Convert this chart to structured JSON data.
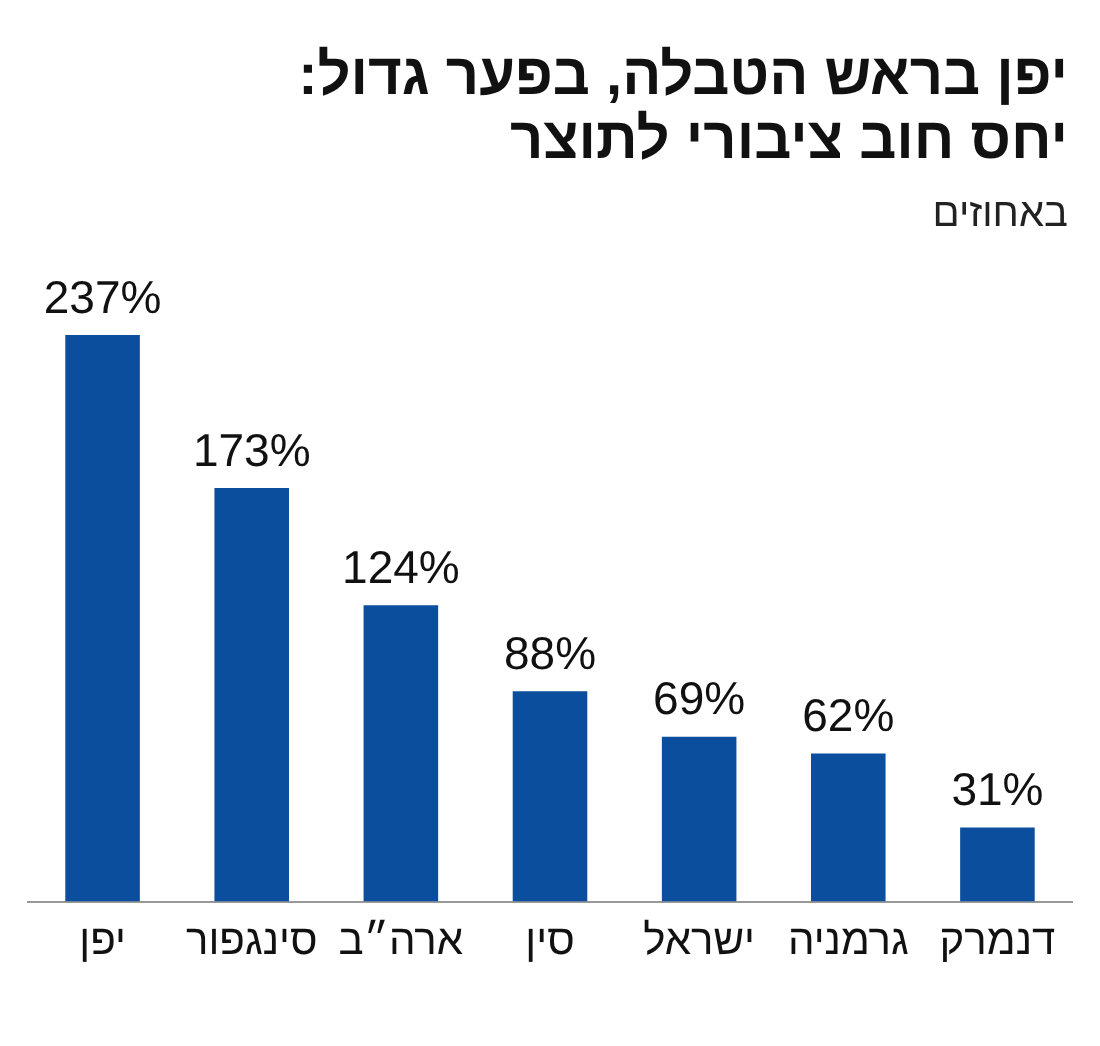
{
  "chart_data": {
    "type": "bar",
    "title": "יפן בראש הטבלה, בפער גדול: יחס חוב ציבורי לתוצר",
    "subtitle": "באחוזים",
    "categories": [
      "יפן",
      "סינגפור",
      "ארה״ב",
      "סין",
      "ישראל",
      "גרמניה",
      "דנמרק"
    ],
    "values": [
      237,
      173,
      124,
      88,
      69,
      62,
      31
    ],
    "value_labels": [
      "237%",
      "173%",
      "124%",
      "88%",
      "69%",
      "62%",
      "31%"
    ],
    "color": "#0b4e9e",
    "grid": false,
    "legend": false
  }
}
